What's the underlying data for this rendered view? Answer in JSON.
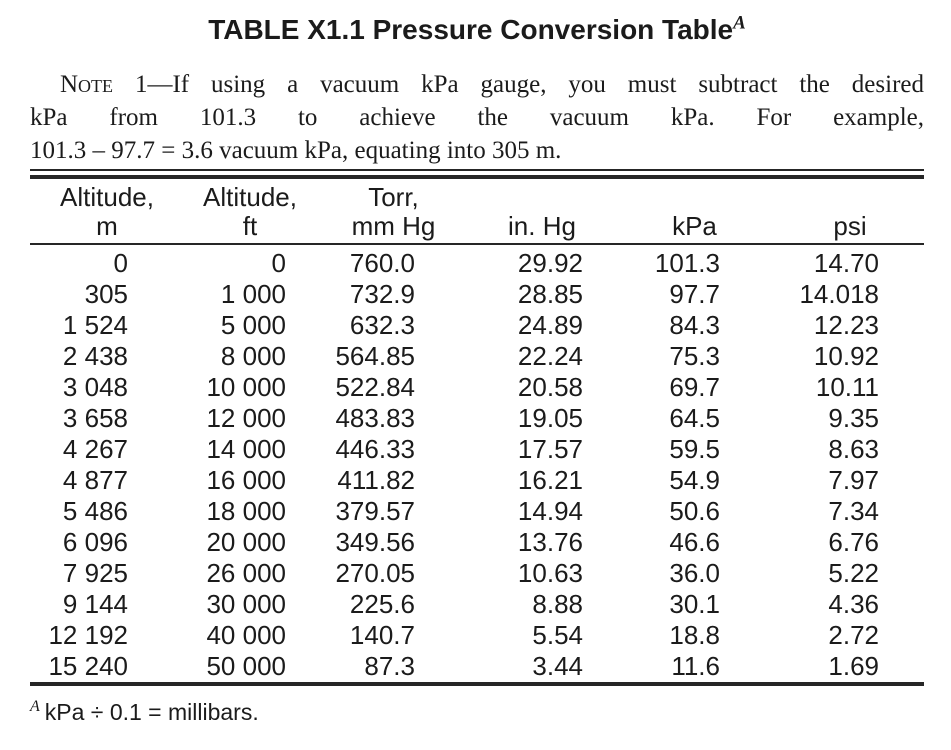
{
  "title": {
    "text": "TABLE X1.1 Pressure Conversion Table",
    "superscript": "A"
  },
  "note": {
    "label": "Note",
    "line1_rest": " 1—If using a vacuum kPa gauge, you must subtract the desired",
    "line2": "kPa from 101.3 to achieve the vacuum kPa. For example,",
    "line3": "101.3 – 97.7 = 3.6 vacuum kPa, equating into 305 m."
  },
  "table": {
    "headers": [
      {
        "line1": "Altitude,",
        "line2": "m"
      },
      {
        "line1": "Altitude,",
        "line2": "ft"
      },
      {
        "line1": "Torr,",
        "line2": "mm Hg"
      },
      {
        "line1": "",
        "line2": "in. Hg"
      },
      {
        "line1": "",
        "line2": "kPa"
      },
      {
        "line1": "",
        "line2": "psi"
      }
    ],
    "rows": [
      [
        "0",
        "0",
        "760.0",
        "29.92",
        "101.3",
        "14.70"
      ],
      [
        "305",
        "1 000",
        "732.9",
        "28.85",
        "97.7",
        "14.018"
      ],
      [
        "1 524",
        "5 000",
        "632.3",
        "24.89",
        "84.3",
        "12.23"
      ],
      [
        "2 438",
        "8 000",
        "564.85",
        "22.24",
        "75.3",
        "10.92"
      ],
      [
        "3 048",
        "10 000",
        "522.84",
        "20.58",
        "69.7",
        "10.11"
      ],
      [
        "3 658",
        "12 000",
        "483.83",
        "19.05",
        "64.5",
        "9.35"
      ],
      [
        "4 267",
        "14 000",
        "446.33",
        "17.57",
        "59.5",
        "8.63"
      ],
      [
        "4 877",
        "16 000",
        "411.82",
        "16.21",
        "54.9",
        "7.97"
      ],
      [
        "5 486",
        "18 000",
        "379.57",
        "14.94",
        "50.6",
        "7.34"
      ],
      [
        "6 096",
        "20 000",
        "349.56",
        "13.76",
        "46.6",
        "6.76"
      ],
      [
        "7 925",
        "26 000",
        "270.05",
        "10.63",
        "36.0",
        "5.22"
      ],
      [
        "9 144",
        "30 000",
        "225.6",
        "8.88",
        "30.1",
        "4.36"
      ],
      [
        "12 192",
        "40 000",
        "140.7",
        "5.54",
        "18.8",
        "2.72"
      ],
      [
        "15 240",
        "50 000",
        "87.3",
        "3.44",
        "11.6",
        "1.69"
      ]
    ]
  },
  "footnote": {
    "superscript": "A",
    "text": "kPa ÷ 0.1 = millibars."
  },
  "colors": {
    "text": "#1b1b1b",
    "rule": "#262626",
    "background": "#ffffff"
  }
}
